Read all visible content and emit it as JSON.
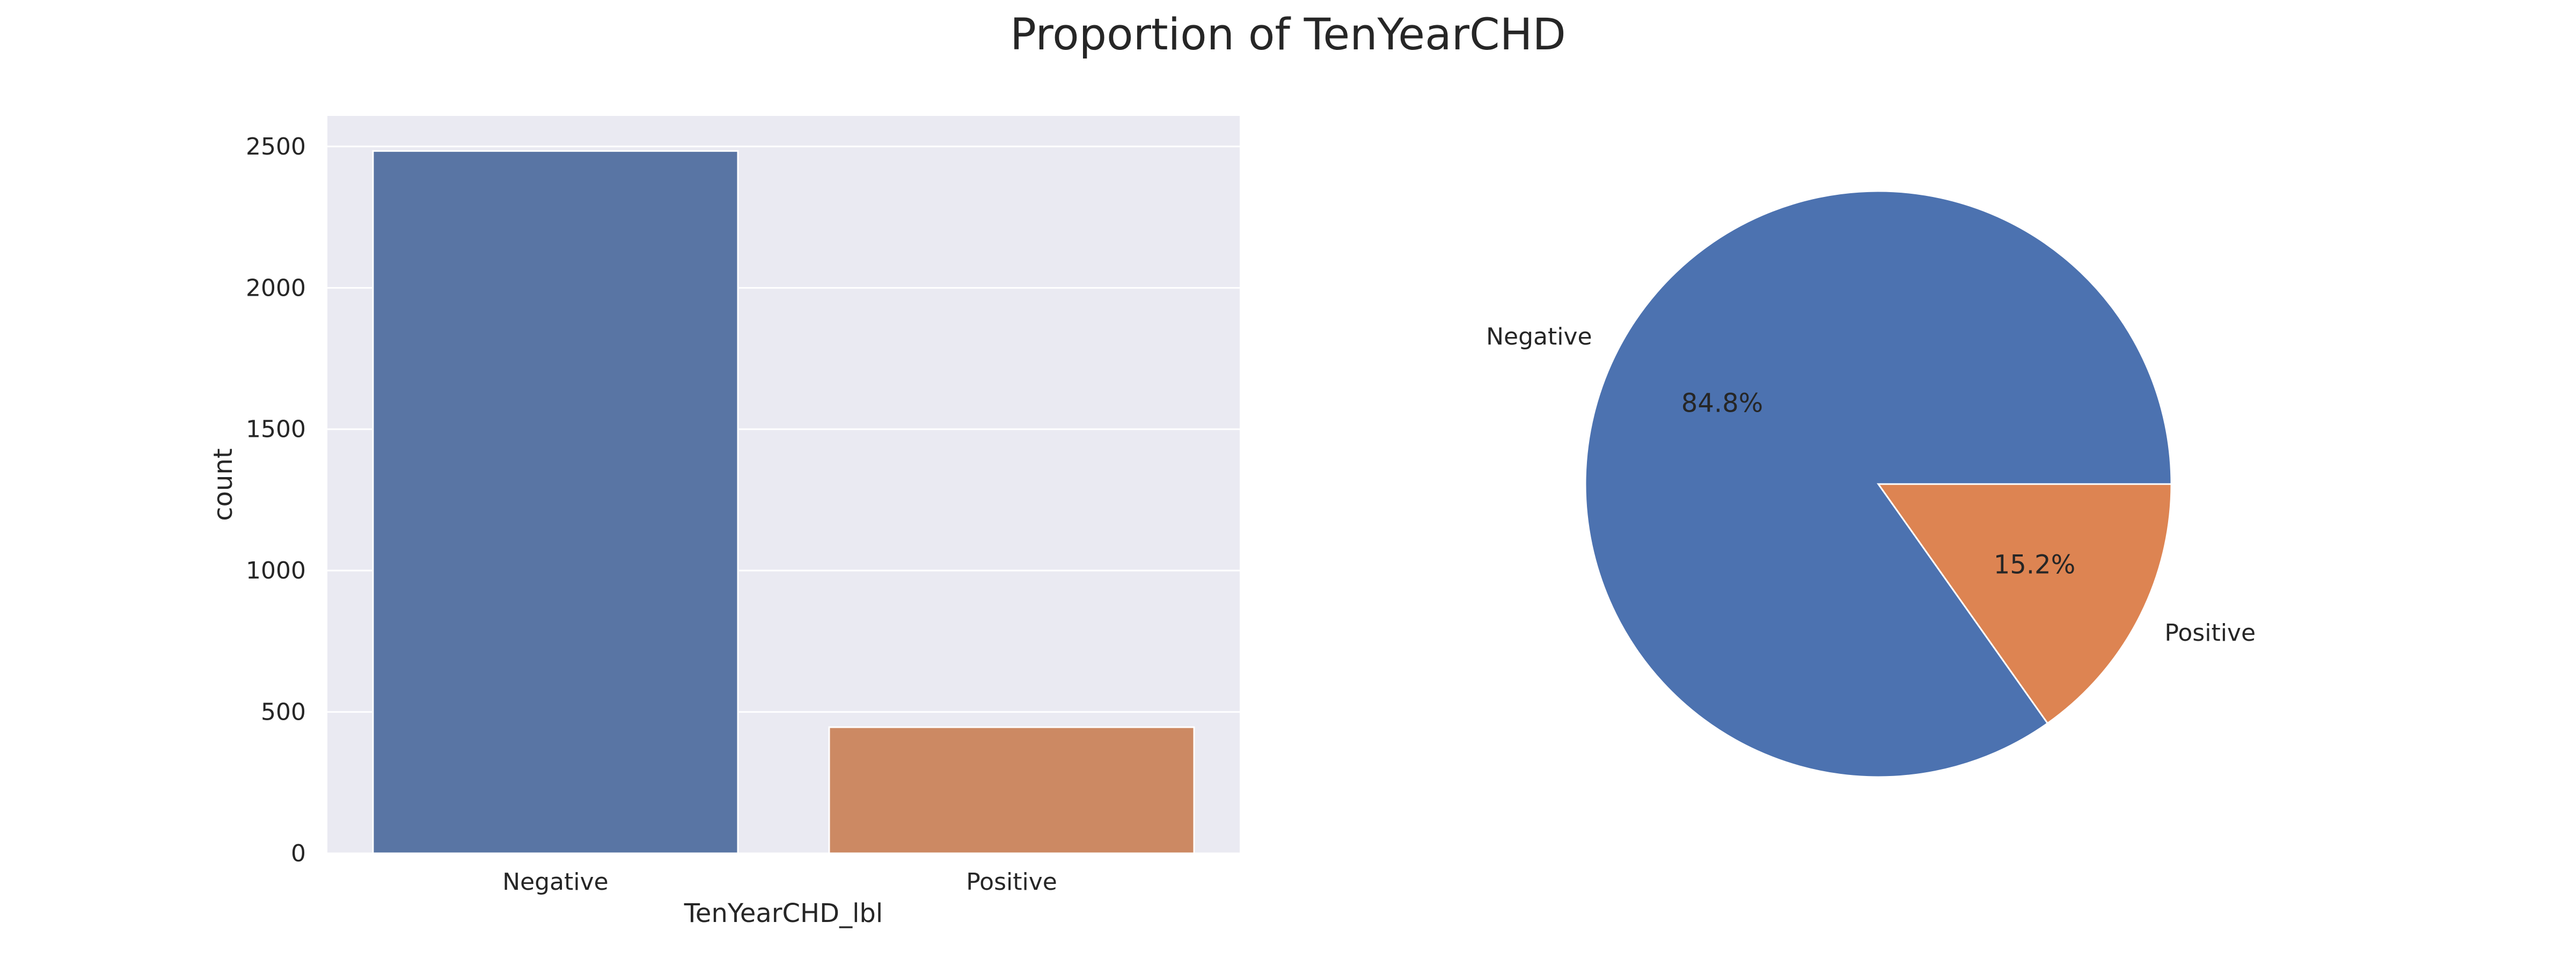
{
  "title": "Proportion of TenYearCHD",
  "chart_data": [
    {
      "type": "bar",
      "categories": [
        "Negative",
        "Positive"
      ],
      "values": [
        2484,
        446
      ],
      "title": "",
      "xlabel": "TenYearCHD_lbl",
      "ylabel": "count",
      "ylim": [
        0,
        2608
      ],
      "yticks": [
        0,
        500,
        1000,
        1500,
        2000,
        2500
      ],
      "grid": true,
      "background": "#eaeaf2",
      "colors": [
        "#5975a4",
        "#cc8963"
      ]
    },
    {
      "type": "pie",
      "labels": [
        "Negative",
        "Positive"
      ],
      "values": [
        84.8,
        15.2
      ],
      "autopct": [
        "84.8%",
        "15.2%"
      ],
      "start_angle_deg": 0,
      "colors": [
        "#4c72b0",
        "#dd8452"
      ]
    }
  ]
}
